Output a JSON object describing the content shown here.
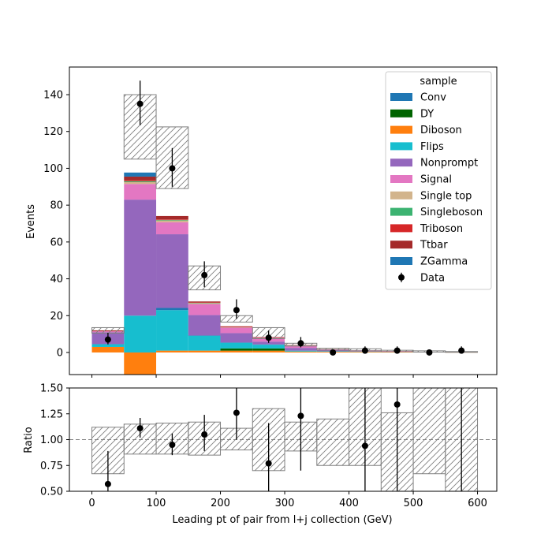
{
  "chart_data": [
    {
      "type": "bar",
      "stacked": true,
      "ylabel": "Events",
      "ylim": [
        -12,
        155
      ],
      "xlim": [
        -35,
        630
      ],
      "x_ticks": [
        0,
        100,
        200,
        300,
        400,
        500,
        600
      ],
      "y_ticks": [
        0,
        20,
        40,
        60,
        80,
        100,
        120,
        140
      ],
      "bin_edges": [
        0,
        50,
        100,
        150,
        200,
        250,
        300,
        350,
        400,
        450,
        500,
        550,
        600
      ],
      "series": [
        {
          "name": "Diboson",
          "color": "#ff7f0e",
          "values": [
            3,
            -12,
            1,
            1,
            1,
            1,
            0.5,
            0.4,
            0.4,
            0.3,
            0.2,
            0.1
          ]
        },
        {
          "name": "DY",
          "color": "#006400",
          "values": [
            0,
            0,
            0,
            0,
            1.2,
            1.2,
            0,
            0,
            0,
            0,
            0,
            0
          ]
        },
        {
          "name": "Flips",
          "color": "#17becf",
          "values": [
            1.5,
            20,
            22,
            8,
            3,
            2,
            0.5,
            0.3,
            0.1,
            0.1,
            0,
            0
          ]
        },
        {
          "name": "Conv",
          "color": "#1f77b4",
          "values": [
            0,
            0,
            1.2,
            0.3,
            0.3,
            0.2,
            0,
            0,
            0,
            0,
            0,
            0
          ]
        },
        {
          "name": "Nonprompt",
          "color": "#9467bd",
          "values": [
            6.5,
            63,
            40,
            11,
            5,
            1.5,
            1.5,
            0.5,
            0.3,
            0.2,
            0.1,
            0.1
          ]
        },
        {
          "name": "Signal",
          "color": "#e377c2",
          "values": [
            0.5,
            8.5,
            6.5,
            6,
            3,
            2,
            1.3,
            0.6,
            0.4,
            0.2,
            0.1,
            0.1
          ]
        },
        {
          "name": "Single top",
          "color": "#d2b48c",
          "values": [
            0,
            1,
            1,
            0.5,
            0.3,
            0.2,
            0.1,
            0.1,
            0,
            0,
            0,
            0
          ]
        },
        {
          "name": "Singleboson",
          "color": "#3cb371",
          "values": [
            0,
            0.5,
            0.3,
            0.2,
            0,
            0,
            0,
            0,
            0,
            0,
            0,
            0
          ]
        },
        {
          "name": "Triboson",
          "color": "#d62728",
          "values": [
            0,
            0.5,
            0.3,
            0.2,
            0.1,
            0.1,
            0,
            0,
            0,
            0,
            0,
            0
          ]
        },
        {
          "name": "Ttbar",
          "color": "#a52a2a",
          "values": [
            0.5,
            2,
            1.8,
            0.5,
            0.3,
            0.2,
            0.1,
            0,
            0,
            0,
            0,
            0
          ]
        },
        {
          "name": "ZGamma",
          "color": "#1f77b4",
          "values": [
            0,
            2.2,
            0,
            0,
            0,
            0,
            0,
            0,
            0,
            0,
            0,
            0
          ]
        }
      ],
      "uncertainty_band": {
        "low": [
          10.5,
          105,
          89,
          34,
          16.5,
          7.5,
          3.5,
          1.3,
          0.9,
          0.4,
          0.2,
          0.1
        ],
        "high": [
          13.5,
          140,
          122.5,
          47,
          20,
          13.5,
          5,
          2.3,
          2,
          1.2,
          0.9,
          0.5
        ]
      },
      "data_points": {
        "name": "Data",
        "x": [
          25,
          75,
          125,
          175,
          225,
          275,
          325,
          375,
          425,
          475,
          525,
          575
        ],
        "y": [
          7,
          135,
          100,
          42,
          23,
          8,
          5,
          0,
          1,
          1,
          0,
          1
        ],
        "err_low": [
          2.6,
          11.6,
          10,
          6.5,
          4.8,
          2.8,
          2.2,
          0,
          1,
          1,
          0,
          1
        ],
        "err_high": [
          3.7,
          12.6,
          11,
          7.5,
          5.9,
          3.9,
          3.4,
          0,
          2.3,
          2.3,
          0,
          2.3
        ]
      },
      "legend": {
        "title": "sample",
        "placement": "top-right",
        "entries": [
          "Conv",
          "DY",
          "Diboson",
          "Flips",
          "Nonprompt",
          "Signal",
          "Single top",
          "Singleboson",
          "Triboson",
          "Ttbar",
          "ZGamma",
          "Data"
        ]
      }
    },
    {
      "type": "scatter",
      "xlabel": "Leading pt of pair from l+j collection (GeV)",
      "ylabel": "Ratio",
      "ylim": [
        0.5,
        1.5
      ],
      "xlim": [
        -35,
        630
      ],
      "x_ticks": [
        0,
        100,
        200,
        300,
        400,
        500,
        600
      ],
      "y_ticks": [
        "0.50",
        "0.75",
        "1.00",
        "1.25",
        "1.50"
      ],
      "reference_line": 1.0,
      "uncertainty_band": {
        "bin_edges": [
          0,
          50,
          100,
          150,
          200,
          250,
          300,
          350,
          400,
          450,
          500,
          550,
          600
        ],
        "low": [
          0.67,
          0.86,
          0.86,
          0.85,
          0.9,
          0.7,
          0.89,
          0.75,
          0.75,
          0.5,
          0.67,
          0.5
        ],
        "high": [
          1.12,
          1.15,
          1.16,
          1.17,
          1.11,
          1.3,
          1.17,
          1.2,
          1.5,
          1.26,
          1.5,
          1.5
        ]
      },
      "x": [
        25,
        75,
        125,
        175,
        225,
        275,
        325,
        425,
        475,
        575
      ],
      "y": [
        0.57,
        1.11,
        0.95,
        1.05,
        1.26,
        0.77,
        1.23,
        0.94,
        1.34,
        1.0
      ],
      "err_low": [
        0.22,
        0.09,
        0.1,
        0.16,
        0.26,
        0.5,
        0.53,
        0.94,
        1.34,
        1.0
      ],
      "err_high": [
        0.32,
        0.1,
        0.11,
        0.19,
        0.31,
        0.39,
        0.6,
        1.5,
        1.5,
        1.5
      ],
      "show_marker": [
        true,
        true,
        true,
        true,
        true,
        true,
        true,
        true,
        true,
        false
      ]
    }
  ]
}
